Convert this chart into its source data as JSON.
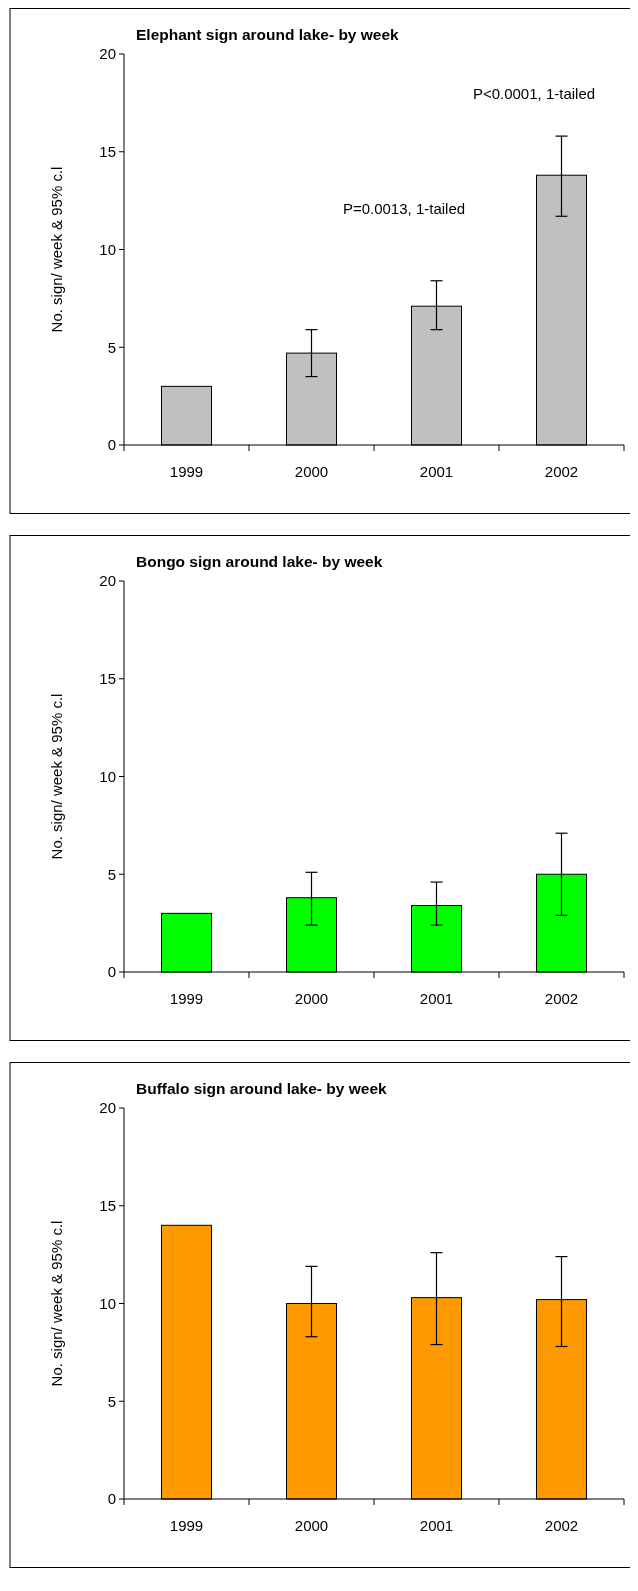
{
  "chart_data": [
    {
      "type": "bar",
      "title": "Elephant sign around lake- by week",
      "ylabel": "No. sign/ week & 95% c.l",
      "categories": [
        "1999",
        "2000",
        "2001",
        "2002"
      ],
      "values": [
        3.0,
        4.7,
        7.1,
        13.8
      ],
      "errors": [
        null,
        [
          3.5,
          5.9
        ],
        [
          5.9,
          8.4
        ],
        [
          11.7,
          15.8
        ]
      ],
      "color": "#c0c0c0",
      "ylim": [
        0,
        20
      ],
      "yticks": [
        0,
        5,
        10,
        15,
        20
      ],
      "annotations": [
        "P<0.0001, 1-tailed",
        "P=0.0013, 1-tailed"
      ]
    },
    {
      "type": "bar",
      "title": "Bongo sign around lake- by week",
      "ylabel": "No. sign/ week & 95% c.l",
      "categories": [
        "1999",
        "2000",
        "2001",
        "2002"
      ],
      "values": [
        3.0,
        3.8,
        3.4,
        5.0
      ],
      "errors": [
        null,
        [
          2.4,
          5.1
        ],
        [
          2.4,
          4.6
        ],
        [
          2.9,
          7.1
        ]
      ],
      "color": "#00ff00",
      "ylim": [
        0,
        20
      ],
      "yticks": [
        0,
        5,
        10,
        15,
        20
      ]
    },
    {
      "type": "bar",
      "title": "Buffalo sign around lake- by week",
      "ylabel": "No. sign/ week & 95% c.l",
      "categories": [
        "1999",
        "2000",
        "2001",
        "2002"
      ],
      "values": [
        14.0,
        10.0,
        10.3,
        10.2
      ],
      "errors": [
        null,
        [
          8.3,
          11.9
        ],
        [
          7.9,
          12.6
        ],
        [
          7.8,
          12.4
        ]
      ],
      "color": "#ff9900",
      "ylim": [
        0,
        20
      ],
      "yticks": [
        0,
        5,
        10,
        15,
        20
      ]
    }
  ]
}
